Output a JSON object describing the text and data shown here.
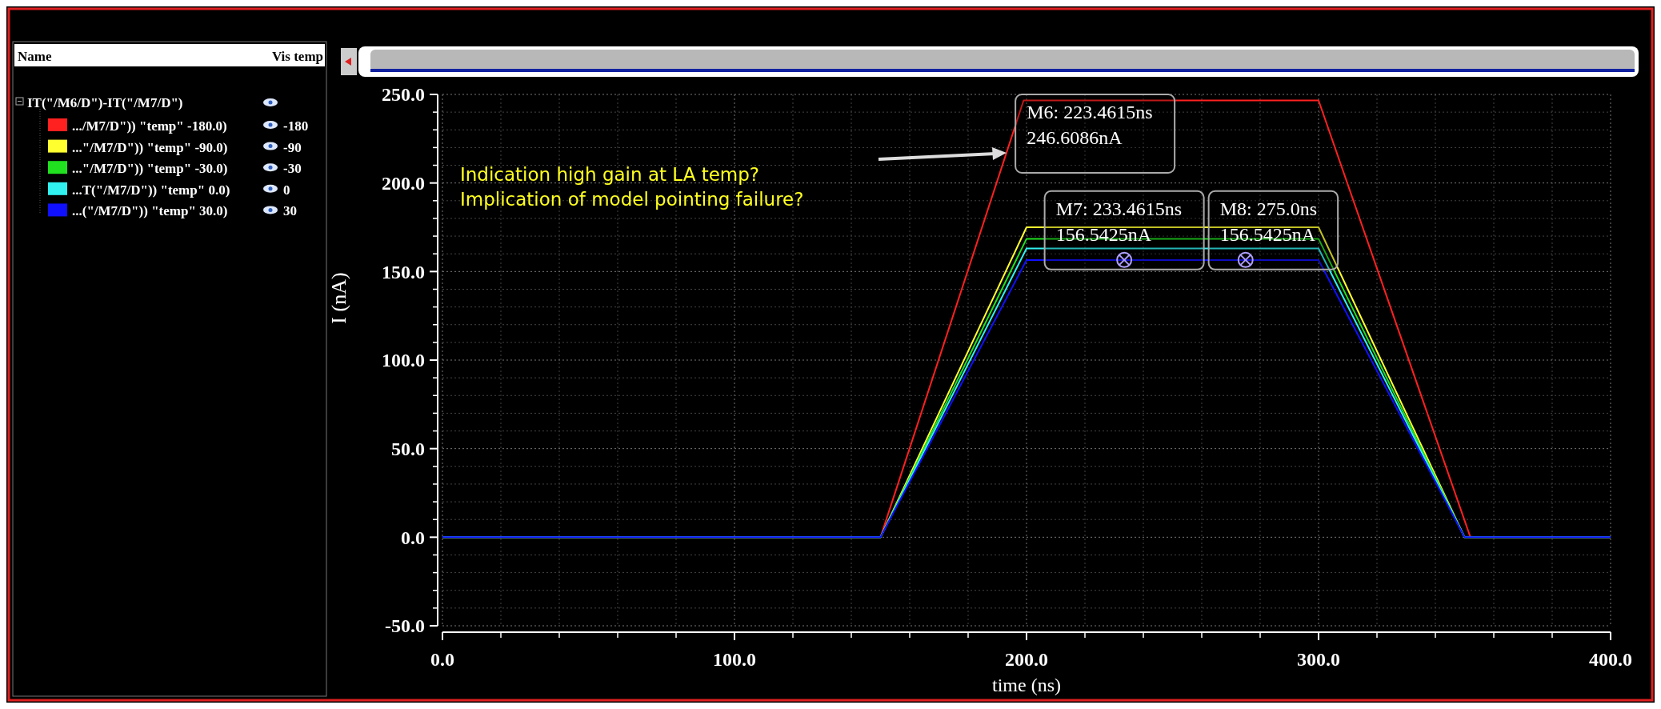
{
  "chart_data": {
    "type": "line",
    "xlabel": "time (ns)",
    "ylabel": "I (nA)",
    "legend_title": "IT(\"/M6/D\")-IT(\"/M7/D\")",
    "xlim": [
      0,
      400
    ],
    "xticks": [
      {
        "value": 0,
        "label": "0.0"
      },
      {
        "value": 100,
        "label": "100.0"
      },
      {
        "value": 200,
        "label": "200.0"
      },
      {
        "value": 300,
        "label": "300.0"
      },
      {
        "value": 400,
        "label": "400.0"
      }
    ],
    "ylim": [
      -50,
      250
    ],
    "yticks": [
      {
        "value": -50,
        "label": "-50.0"
      },
      {
        "value": 0,
        "label": "0.0"
      },
      {
        "value": 50,
        "label": "50.0"
      },
      {
        "value": 100,
        "label": "100.0"
      },
      {
        "value": 150,
        "label": "150.0"
      },
      {
        "value": 200,
        "label": "200.0"
      },
      {
        "value": 250,
        "label": "250.0"
      }
    ],
    "grid": true,
    "legend": "left",
    "line_style": "solid",
    "marker": "none",
    "series": [
      {
        "name": ".../M7/D\")) \"temp\" -180.0)",
        "color": "#ff2020",
        "x": [
          0,
          150,
          199,
          300,
          352,
          400
        ],
        "values": [
          0,
          0,
          246.6,
          246.6,
          0,
          0
        ]
      },
      {
        "name": "...\"/M7/D\")) \"temp\" -90.0)",
        "color": "#ffff30",
        "x": [
          0,
          150,
          200,
          300,
          350,
          400
        ],
        "values": [
          0,
          0,
          175,
          175,
          0,
          0
        ]
      },
      {
        "name": "...\"/M7/D\")) \"temp\" -30.0)",
        "color": "#20e020",
        "x": [
          0,
          150,
          200,
          300,
          350,
          400
        ],
        "values": [
          0,
          0,
          168.5,
          168.5,
          0,
          0
        ]
      },
      {
        "name": "...T(\"/M7/D\")) \"temp\" 0.0)",
        "color": "#30f0f0",
        "x": [
          0,
          150,
          200,
          300,
          350,
          400
        ],
        "values": [
          0,
          0,
          163,
          163,
          0,
          0
        ]
      },
      {
        "name": "...(\"/M7/D\")) \"temp\" 30.0)",
        "color": "#1010ff",
        "x": [
          0,
          150,
          200,
          300,
          350,
          400
        ],
        "values": [
          0,
          0,
          156.5,
          156.5,
          0,
          0
        ]
      }
    ],
    "annotations": [
      "Name",
      "Vis temp",
      "-180",
      "-90",
      "-30",
      "0",
      "30",
      "Indication high gain at LA temp?",
      "Implication of model pointing  failure?",
      {
        "text": "M6: 223.4615ns\n246.6086nA",
        "x": 223.4615,
        "y": 246.6086
      },
      {
        "text": "M7: 233.4615ns\n156.5425nA",
        "x": 233.4615,
        "y": 156.5425
      },
      {
        "text": "M8: 275.0ns\n156.5425nA",
        "x": 275,
        "y": 156.5425
      }
    ]
  }
}
